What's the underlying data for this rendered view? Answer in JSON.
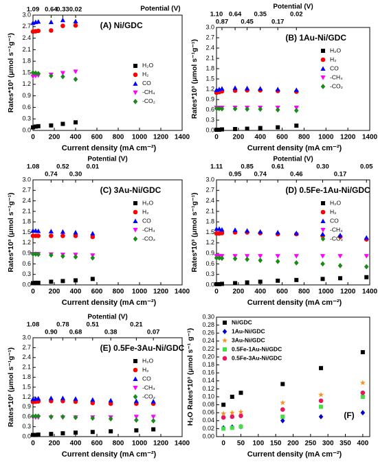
{
  "chart_data": [
    {
      "type": "scatter",
      "title": "(A) Ni/GDC",
      "xlabel": "Current density (mA cm⁻²)",
      "ylabel": "Rates*10³ (μmol s⁻¹g⁻¹)",
      "x2label": "Potential (V)",
      "x": [
        0,
        25,
        50,
        170,
        280,
        400
      ],
      "series": [
        {
          "name": "H₂O",
          "color": "#000000",
          "marker": "square",
          "values": [
            0.08,
            0.1,
            0.11,
            0.13,
            0.17,
            0.21
          ]
        },
        {
          "name": "H₂",
          "color": "#ff0000",
          "marker": "circle",
          "values": [
            2.57,
            2.58,
            2.59,
            2.6,
            2.72,
            2.73
          ]
        },
        {
          "name": "CO",
          "color": "#0000ff",
          "marker": "triangle-up",
          "values": [
            2.8,
            2.82,
            2.83,
            2.82,
            2.87,
            2.84
          ]
        },
        {
          "name": "-CH₄",
          "color": "#ff00ff",
          "marker": "triangle-down",
          "values": [
            1.4,
            1.42,
            1.43,
            1.45,
            1.49,
            1.53
          ]
        },
        {
          "name": "-CO₂",
          "color": "#1a8a1a",
          "marker": "diamond",
          "values": [
            1.5,
            1.49,
            1.48,
            1.42,
            1.4,
            1.33
          ]
        }
      ],
      "xlim": [
        0,
        1400
      ],
      "xticks": [
        0,
        200,
        400,
        600,
        800,
        1000,
        1200,
        1400
      ],
      "ylim": [
        0,
        3.0
      ],
      "yticks": [
        {
          "value": 0,
          "label": "0.0"
        },
        0.3,
        0.6,
        0.9,
        1.2,
        1.5,
        1.8,
        2.1,
        2.4,
        2.7,
        {
          "value": 3,
          "label": "3.0"
        }
      ],
      "x2ticks": [
        {
          "value": 0,
          "label": "1.09"
        },
        {
          "value": 170,
          "label": "0.64"
        },
        {
          "value": 280,
          "label": "0.33"
        },
        {
          "value": 400,
          "label": "0.02"
        }
      ],
      "legend": "center right"
    },
    {
      "type": "scatter",
      "title": "(B) 1Au-Ni/GDC",
      "xlabel": "Current density (mA cm⁻²)",
      "ylabel": "Rates*10³ (μmol s⁻¹g⁻¹)",
      "x2label": "Potential (V)",
      "x": [
        0,
        25,
        50,
        170,
        280,
        400,
        560,
        730
      ],
      "series": [
        {
          "name": "H₂O",
          "color": "#000000",
          "marker": "square",
          "values": [
            0.02,
            0.02,
            0.03,
            0.04,
            0.05,
            0.07,
            0.09,
            0.14
          ]
        },
        {
          "name": "H₂",
          "color": "#ff0000",
          "marker": "circle",
          "values": [
            1.1,
            1.12,
            1.14,
            1.16,
            1.17,
            1.17,
            1.15,
            1.13
          ]
        },
        {
          "name": "CO",
          "color": "#0000ff",
          "marker": "triangle-up",
          "values": [
            1.18,
            1.2,
            1.22,
            1.24,
            1.23,
            1.22,
            1.2,
            1.18
          ]
        },
        {
          "name": "-CH₄",
          "color": "#ff00ff",
          "marker": "triangle-down",
          "values": [
            0.66,
            0.66,
            0.66,
            0.66,
            0.66,
            0.66,
            0.66,
            0.66
          ]
        },
        {
          "name": "-CO₂",
          "color": "#1a8a1a",
          "marker": "diamond",
          "values": [
            0.64,
            0.64,
            0.63,
            0.63,
            0.62,
            0.62,
            0.6,
            0.58
          ]
        }
      ],
      "xlim": [
        0,
        1400
      ],
      "xticks": [
        0,
        200,
        400,
        600,
        800,
        1000,
        1200,
        1400
      ],
      "ylim": [
        0,
        3.0
      ],
      "yticks": [
        {
          "value": 0,
          "label": "0.0"
        },
        0.3,
        0.6,
        0.9,
        1.2,
        1.5,
        1.8,
        2.1,
        2.4,
        2.7,
        {
          "value": 3,
          "label": "3.0"
        }
      ],
      "x2ticks": [
        {
          "value": 0,
          "label": "1.10"
        },
        {
          "value": 50,
          "label": "0.87"
        },
        {
          "value": 170,
          "label": "0.64"
        },
        {
          "value": 280,
          "label": "0.45"
        },
        {
          "value": 400,
          "label": "0.35"
        },
        {
          "value": 560,
          "label": "0.17"
        },
        {
          "value": 730,
          "label": "0.02"
        }
      ],
      "legend": "upper right"
    },
    {
      "type": "scatter",
      "title": "(C) 3Au-Ni/GDC",
      "xlabel": "Current density (mA cm⁻²)",
      "ylabel": "Rates*10³ (μmol s⁻¹g⁻¹)",
      "x2label": "Potential (V)",
      "x": [
        0,
        25,
        50,
        170,
        280,
        400,
        560
      ],
      "series": [
        {
          "name": "H₂O",
          "color": "#000000",
          "marker": "square",
          "values": [
            0.05,
            0.06,
            0.06,
            0.09,
            0.11,
            0.13,
            0.17
          ]
        },
        {
          "name": "H₂",
          "color": "#ff0000",
          "marker": "circle",
          "values": [
            1.4,
            1.4,
            1.4,
            1.4,
            1.4,
            1.4,
            1.37
          ]
        },
        {
          "name": "CO",
          "color": "#0000ff",
          "marker": "triangle-up",
          "values": [
            1.55,
            1.55,
            1.54,
            1.53,
            1.52,
            1.5,
            1.47
          ]
        },
        {
          "name": "-CH₄",
          "color": "#ff00ff",
          "marker": "triangle-down",
          "values": [
            0.88,
            0.88,
            0.88,
            0.87,
            0.86,
            0.86,
            0.84
          ]
        },
        {
          "name": "-CO₂",
          "color": "#1a8a1a",
          "marker": "diamond",
          "values": [
            0.88,
            0.88,
            0.87,
            0.85,
            0.82,
            0.8,
            0.77
          ]
        }
      ],
      "xlim": [
        0,
        1400
      ],
      "xticks": [
        0,
        200,
        400,
        600,
        800,
        1000,
        1200,
        1400
      ],
      "ylim": [
        0,
        3.0
      ],
      "yticks": [
        {
          "value": 0,
          "label": "0.0"
        },
        0.3,
        0.6,
        0.9,
        1.2,
        1.5,
        1.8,
        2.1,
        2.4,
        2.7,
        {
          "value": 3,
          "label": "3.0"
        }
      ],
      "x2ticks": [
        {
          "value": 0,
          "label": "1.08"
        },
        {
          "value": 170,
          "label": "0.74"
        },
        {
          "value": 280,
          "label": "0.52"
        },
        {
          "value": 400,
          "label": "0.30"
        },
        {
          "value": 560,
          "label": "0.01"
        }
      ],
      "legend": "upper right"
    },
    {
      "type": "scatter",
      "title": "(D) 0.5Fe-1Au-Ni/GDC",
      "xlabel": "Current density (mA cm⁻²)",
      "ylabel": "Rates*10³ (μmol s⁻¹g⁻¹)",
      "x2label": "Potential (V)",
      "x": [
        0,
        25,
        50,
        170,
        280,
        400,
        560,
        730,
        970,
        1130,
        1370
      ],
      "series": [
        {
          "name": "H₂O",
          "color": "#000000",
          "marker": "square",
          "values": [
            0.02,
            0.02,
            0.03,
            0.05,
            0.07,
            0.09,
            0.12,
            0.14,
            0.17,
            0.19,
            0.22
          ]
        },
        {
          "name": "H₂",
          "color": "#ff0000",
          "marker": "circle",
          "values": [
            1.47,
            1.47,
            1.48,
            1.5,
            1.5,
            1.48,
            1.45,
            1.45,
            1.4,
            1.38,
            1.3
          ]
        },
        {
          "name": "CO",
          "color": "#0000ff",
          "marker": "triangle-up",
          "values": [
            1.6,
            1.6,
            1.58,
            1.57,
            1.55,
            1.52,
            1.5,
            1.48,
            1.45,
            1.42,
            1.35
          ]
        },
        {
          "name": "-CH₄",
          "color": "#ff00ff",
          "marker": "triangle-down",
          "values": [
            0.82,
            0.82,
            0.82,
            0.82,
            0.82,
            0.82,
            0.82,
            0.82,
            0.82,
            0.82,
            0.82
          ]
        },
        {
          "name": "-CO₂",
          "color": "#1a8a1a",
          "marker": "diamond",
          "values": [
            0.77,
            0.77,
            0.76,
            0.75,
            0.73,
            0.7,
            0.67,
            0.63,
            0.6,
            0.55,
            0.52
          ]
        }
      ],
      "xlim": [
        0,
        1400
      ],
      "xticks": [
        0,
        200,
        400,
        600,
        800,
        1000,
        1200,
        1400
      ],
      "ylim": [
        0,
        3.0
      ],
      "yticks": [
        {
          "value": 0,
          "label": "0.0"
        },
        0.3,
        0.6,
        0.9,
        1.2,
        1.5,
        1.8,
        2.1,
        2.4,
        2.7,
        {
          "value": 3,
          "label": "3.0"
        }
      ],
      "x2ticks": [
        {
          "value": 0,
          "label": "1.11"
        },
        {
          "value": 170,
          "label": "0.95"
        },
        {
          "value": 280,
          "label": "0.85"
        },
        {
          "value": 400,
          "label": "0.74"
        },
        {
          "value": 560,
          "label": "0.61"
        },
        {
          "value": 730,
          "label": "0.46"
        },
        {
          "value": 970,
          "label": "0.30"
        },
        {
          "value": 1130,
          "label": "0.17"
        },
        {
          "value": 1370,
          "label": "0.05"
        }
      ],
      "legend": "upper right"
    },
    {
      "type": "scatter",
      "title": "(E) 0.5Fe-3Au-Ni/GDC",
      "xlabel": "Current density (mA cm⁻²)",
      "ylabel": "Rates*10³ (μmol s⁻¹g⁻¹)",
      "x2label": "Potential (V)",
      "x": [
        0,
        25,
        50,
        170,
        280,
        400,
        560,
        730,
        970,
        1130
      ],
      "series": [
        {
          "name": "H₂O",
          "color": "#000000",
          "marker": "square",
          "values": [
            0.05,
            0.05,
            0.06,
            0.08,
            0.1,
            0.12,
            0.14,
            0.16,
            0.19,
            0.22
          ]
        },
        {
          "name": "H₂",
          "color": "#ff0000",
          "marker": "circle",
          "values": [
            1.05,
            1.06,
            1.07,
            1.08,
            1.08,
            1.06,
            1.02,
            1.0,
            1.0,
            1.0
          ]
        },
        {
          "name": "CO",
          "color": "#0000ff",
          "marker": "triangle-up",
          "values": [
            1.14,
            1.15,
            1.16,
            1.17,
            1.17,
            1.15,
            1.12,
            1.1,
            1.08,
            1.07
          ]
        },
        {
          "name": "-CH₄",
          "color": "#ff00ff",
          "marker": "triangle-down",
          "values": [
            0.58,
            0.58,
            0.58,
            0.58,
            0.58,
            0.58,
            0.58,
            0.58,
            0.6,
            0.6
          ]
        },
        {
          "name": "-CO₂",
          "color": "#1a8a1a",
          "marker": "diamond",
          "values": [
            0.62,
            0.62,
            0.62,
            0.6,
            0.6,
            0.58,
            0.56,
            0.54,
            0.5,
            0.48
          ]
        }
      ],
      "xlim": [
        0,
        1400
      ],
      "xticks": [
        0,
        200,
        400,
        600,
        800,
        1000,
        1200,
        1400
      ],
      "ylim": [
        0,
        3.0
      ],
      "yticks": [
        {
          "value": 0,
          "label": "0.0"
        },
        0.3,
        0.6,
        0.9,
        1.2,
        1.5,
        1.8,
        2.1,
        2.4,
        2.7,
        {
          "value": 3,
          "label": "3.0"
        }
      ],
      "x2ticks": [
        {
          "value": 0,
          "label": "1.08"
        },
        {
          "value": 170,
          "label": "0.90"
        },
        {
          "value": 280,
          "label": "0.78"
        },
        {
          "value": 400,
          "label": "0.68"
        },
        {
          "value": 560,
          "label": "0.51"
        },
        {
          "value": 730,
          "label": "0.38"
        },
        {
          "value": 970,
          "label": "0.21"
        },
        {
          "value": 1130,
          "label": "0.07"
        }
      ],
      "legend": "upper right"
    },
    {
      "type": "scatter",
      "title": "(F)",
      "xlabel": "Current density (mA cm⁻²)",
      "ylabel": "H₂O Rates*10³ (μmol s⁻¹ g⁻¹)",
      "x": [
        0,
        25,
        50,
        170,
        280,
        400
      ],
      "series": [
        {
          "name": "Ni/GDC",
          "color": "#000000",
          "marker": "square",
          "values": [
            0.08,
            0.1,
            0.11,
            0.132,
            0.172,
            0.212
          ]
        },
        {
          "name": "1Au-Ni/GDC",
          "color": "#0000cc",
          "marker": "diamond",
          "values": [
            0.022,
            0.024,
            0.025,
            0.04,
            0.05,
            0.06
          ]
        },
        {
          "name": "3Au-Ni/GDC",
          "color": "#ff8c1a",
          "marker": "star",
          "values": [
            0.058,
            0.06,
            0.062,
            0.085,
            0.105,
            0.135
          ]
        },
        {
          "name": "0.5Fe-1Au-Ni/GDC",
          "color": "#44dd44",
          "marker": "square",
          "values": [
            0.02,
            0.022,
            0.025,
            0.05,
            0.075,
            0.1
          ]
        },
        {
          "name": "0.5Fe-3Au-Ni/GDC",
          "color": "#e8175d",
          "marker": "circle",
          "values": [
            0.048,
            0.05,
            0.052,
            0.068,
            0.09,
            0.11
          ]
        }
      ],
      "xlim": [
        -20,
        420
      ],
      "xticks": [
        0,
        50,
        100,
        150,
        200,
        250,
        300,
        350,
        400
      ],
      "ylim": [
        0,
        0.3
      ],
      "yticks": [
        {
          "value": 0,
          "label": "0.00"
        },
        0.02,
        0.04,
        0.06,
        0.08,
        {
          "value": 0.1,
          "label": "0.10"
        },
        0.12,
        0.14,
        0.16,
        0.18,
        {
          "value": 0.2,
          "label": "0.20"
        },
        0.22,
        0.24,
        0.26,
        0.28,
        {
          "value": 0.3,
          "label": "0.30"
        }
      ],
      "legend": "upper left"
    }
  ]
}
